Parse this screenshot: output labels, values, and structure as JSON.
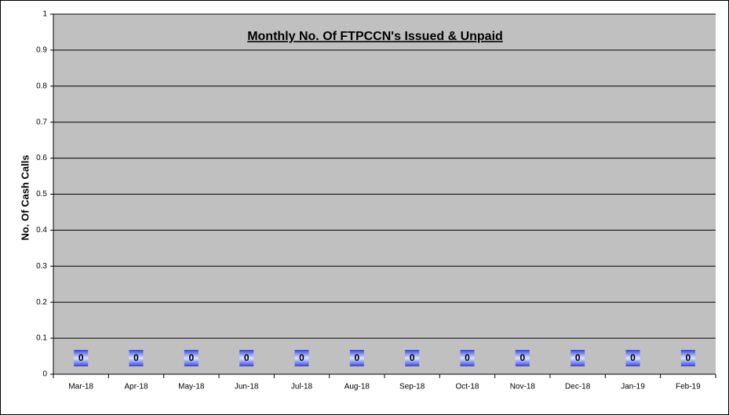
{
  "chart_data": {
    "type": "bar",
    "title": "Monthly No. Of FTPCCN's Issued & Unpaid",
    "y_label": "No. Of Cash Calls",
    "categories": [
      "Mar-18",
      "Apr-18",
      "May-18",
      "Jun-18",
      "Jul-18",
      "Aug-18",
      "Sep-18",
      "Oct-18",
      "Nov-18",
      "Dec-18",
      "Jan-19",
      "Feb-19"
    ],
    "values": [
      0,
      0,
      0,
      0,
      0,
      0,
      0,
      0,
      0,
      0,
      0,
      0
    ],
    "color": "#3355cc",
    "ylim": [
      0,
      1
    ],
    "yticks": [
      0,
      0.1,
      0.2,
      0.3,
      0.4,
      0.5,
      0.6,
      0.7,
      0.8,
      0.9,
      1
    ],
    "grid": true
  }
}
